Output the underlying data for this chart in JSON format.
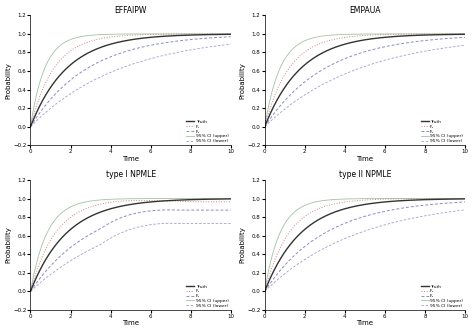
{
  "titles": [
    "EFFAIPW",
    "EMPAUA",
    "type I NPMLE",
    "type II NPMLE"
  ],
  "xlabel": "Time",
  "ylabel": "Probability",
  "xlim": [
    0,
    10
  ],
  "ylim": [
    -0.2,
    1.2
  ],
  "legend_labels": [
    "Truth",
    "F₁",
    "F₂",
    "95% CI (upper)",
    "95% CI (lower)"
  ],
  "truth_color": "#333333",
  "f1_color": "#cc7777",
  "f2_color": "#7777bb",
  "ci_upper_color": "#99bb99",
  "ci_lower_color": "#7777bb",
  "xticks": [
    0,
    2,
    4,
    6,
    8,
    10
  ],
  "yticks": [
    -0.2,
    0.0,
    0.2,
    0.4,
    0.6,
    0.8,
    1.0,
    1.2
  ],
  "panel_rates": [
    {
      "truth": 0.55,
      "f1": 0.85,
      "f2": 0.35,
      "ci_upper": 1.4,
      "ci_lower": 0.22
    },
    {
      "truth": 0.55,
      "f1": 0.82,
      "f2": 0.33,
      "ci_upper": 1.3,
      "ci_lower": 0.21
    },
    {
      "truth": 0.55,
      "f1": 0.8,
      "f2": 0.32,
      "ci_upper": 1.2,
      "ci_lower": 0.2
    },
    {
      "truth": 0.55,
      "f1": 0.82,
      "f2": 0.33,
      "ci_upper": 1.3,
      "ci_lower": 0.21
    }
  ],
  "npmle1_f1_plateau": 0.965,
  "npmle1_f2_plateau": 0.875,
  "npmle1_ci_lower_plateau": 0.73,
  "npmle1_ci_upper_clamp": 1.05
}
